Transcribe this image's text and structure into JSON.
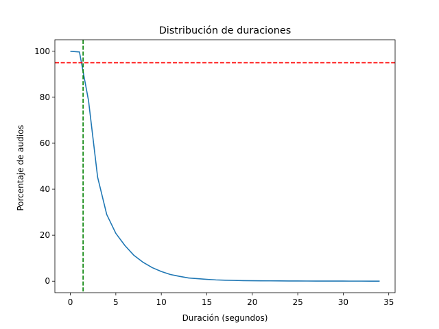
{
  "chart_data": {
    "type": "line",
    "title": "Distribución de duraciones",
    "xlabel": "Duración (segundos)",
    "ylabel": "Porcentaje de audios",
    "xlim": [
      -1.7,
      35.7
    ],
    "ylim": [
      -5,
      105
    ],
    "xticks": [
      0,
      5,
      10,
      15,
      20,
      25,
      30,
      35
    ],
    "yticks": [
      0,
      20,
      40,
      60,
      80,
      100
    ],
    "grid": false,
    "series": [
      {
        "color": "#1f77b4",
        "x": [
          0,
          1,
          2,
          3,
          4,
          5,
          6,
          7,
          8,
          9,
          10,
          11,
          12,
          13,
          14,
          15,
          16,
          17,
          18,
          19,
          20,
          21,
          22,
          23,
          24,
          25,
          26,
          27,
          28,
          29,
          30,
          31,
          32,
          33,
          34
        ],
        "y": [
          100,
          99.7,
          78.5,
          45.2,
          29,
          20.8,
          15.5,
          11.2,
          8.2,
          5.9,
          4.2,
          2.9,
          2.1,
          1.4,
          1.1,
          0.8,
          0.55,
          0.42,
          0.33,
          0.25,
          0.2,
          0.17,
          0.14,
          0.12,
          0.1,
          0.08,
          0.07,
          0.06,
          0.05,
          0.04,
          0.04,
          0.03,
          0.03,
          0.02,
          0.02
        ]
      }
    ],
    "reference_lines": [
      {
        "orientation": "horizontal",
        "value": 95,
        "color": "#ff0000",
        "style": "dashed"
      },
      {
        "orientation": "vertical",
        "value": 1.4,
        "color": "#008000",
        "style": "dashed"
      }
    ]
  }
}
